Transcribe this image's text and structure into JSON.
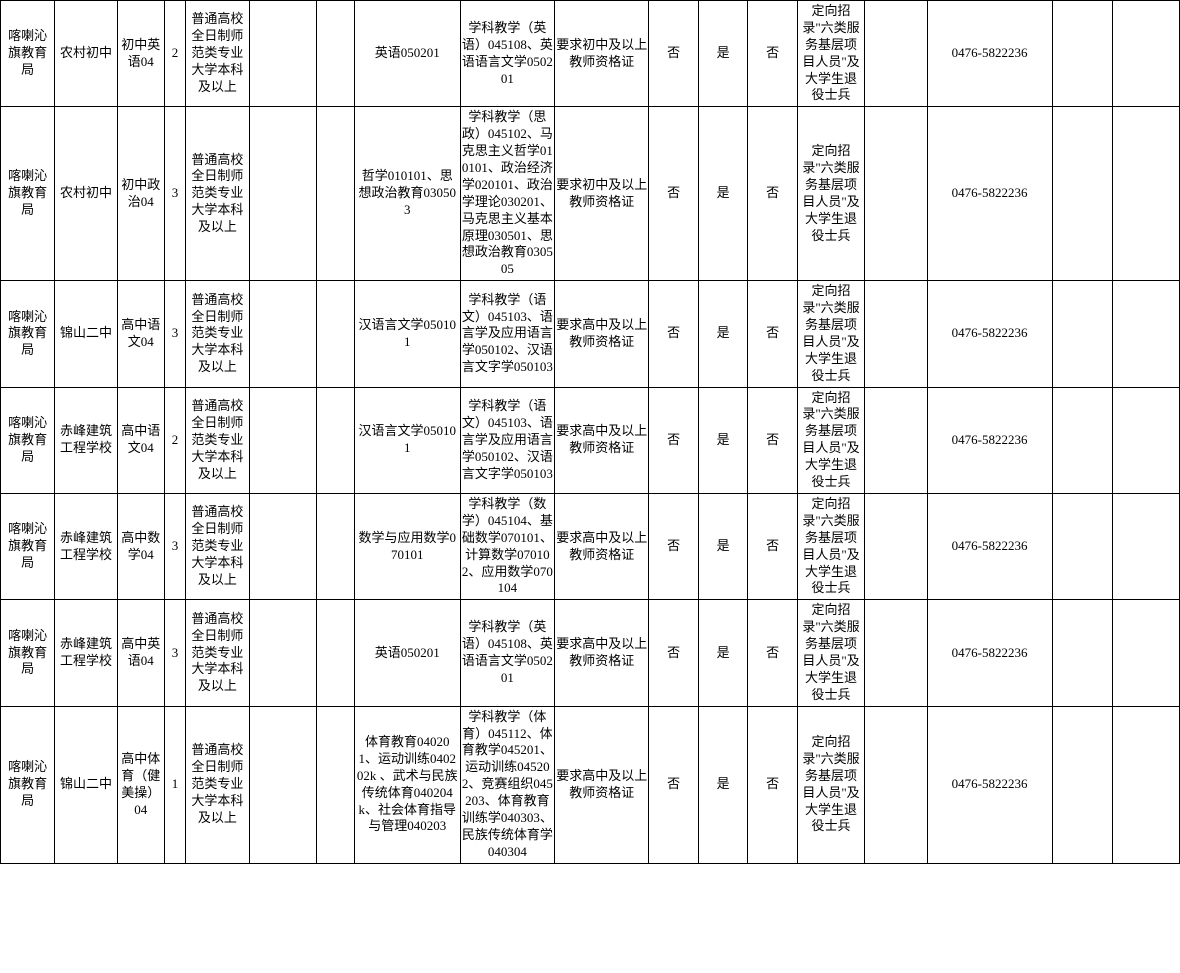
{
  "table": {
    "background_color": "#ffffff",
    "border_color": "#000000",
    "font_size": 13,
    "rows": [
      {
        "c0": "喀喇沁旗教育局",
        "c1": "农村初中",
        "c2": "初中英语04",
        "c3": "2",
        "c4": "普通高校全日制师范类专业大学本科及以上",
        "c5": "",
        "c6": "",
        "c7": "英语050201",
        "c8": "学科教学（英语）045108、英语语言文学050201",
        "c9": "要求初中及以上教师资格证",
        "c10": "否",
        "c11": "是",
        "c12": "否",
        "c13": "定向招录\"六类服务基层项目人员\"及大学生退役士兵",
        "c14": "",
        "c15": "0476-5822236",
        "c16": "",
        "c17": ""
      },
      {
        "c0": "喀喇沁旗教育局",
        "c1": "农村初中",
        "c2": "初中政治04",
        "c3": "3",
        "c4": "普通高校全日制师范类专业大学本科及以上",
        "c5": "",
        "c6": "",
        "c7": "哲学010101、思想政治教育030503",
        "c8": "学科教学（思政）045102、马克思主义哲学010101、政治经济学020101、政治学理论030201、马克思主义基本原理030501、思想政治教育030505",
        "c9": "要求初中及以上教师资格证",
        "c10": "否",
        "c11": "是",
        "c12": "否",
        "c13": "定向招录\"六类服务基层项目人员\"及大学生退役士兵",
        "c14": "",
        "c15": "0476-5822236",
        "c16": "",
        "c17": ""
      },
      {
        "c0": "喀喇沁旗教育局",
        "c1": "锦山二中",
        "c2": "高中语文04",
        "c3": "3",
        "c4": "普通高校全日制师范类专业大学本科及以上",
        "c5": "",
        "c6": "",
        "c7": "汉语言文学050101",
        "c8": "学科教学（语文）045103、语言学及应用语言学050102、汉语言文字学050103",
        "c9": "要求高中及以上教师资格证",
        "c10": "否",
        "c11": "是",
        "c12": "否",
        "c13": "定向招录\"六类服务基层项目人员\"及大学生退役士兵",
        "c14": "",
        "c15": "0476-5822236",
        "c16": "",
        "c17": ""
      },
      {
        "c0": "喀喇沁旗教育局",
        "c1": "赤峰建筑工程学校",
        "c2": "高中语文04",
        "c3": "2",
        "c4": "普通高校全日制师范类专业大学本科及以上",
        "c5": "",
        "c6": "",
        "c7": "汉语言文学050101",
        "c8": "学科教学（语文）045103、语言学及应用语言学050102、汉语言文字学050103",
        "c9": "要求高中及以上教师资格证",
        "c10": "否",
        "c11": "是",
        "c12": "否",
        "c13": "定向招录\"六类服务基层项目人员\"及大学生退役士兵",
        "c14": "",
        "c15": "0476-5822236",
        "c16": "",
        "c17": ""
      },
      {
        "c0": "喀喇沁旗教育局",
        "c1": "赤峰建筑工程学校",
        "c2": "高中数学04",
        "c3": "3",
        "c4": "普通高校全日制师范类专业大学本科及以上",
        "c5": "",
        "c6": "",
        "c7": "数学与应用数学070101",
        "c8": "学科教学（数学）045104、基础数学070101、计算数学070102、应用数学070104",
        "c9": "要求高中及以上教师资格证",
        "c10": "否",
        "c11": "是",
        "c12": "否",
        "c13": "定向招录\"六类服务基层项目人员\"及大学生退役士兵",
        "c14": "",
        "c15": "0476-5822236",
        "c16": "",
        "c17": ""
      },
      {
        "c0": "喀喇沁旗教育局",
        "c1": "赤峰建筑工程学校",
        "c2": "高中英语04",
        "c3": "3",
        "c4": "普通高校全日制师范类专业大学本科及以上",
        "c5": "",
        "c6": "",
        "c7": "英语050201",
        "c8": "学科教学（英语）045108、英语语言文学050201",
        "c9": "要求高中及以上教师资格证",
        "c10": "否",
        "c11": "是",
        "c12": "否",
        "c13": "定向招录\"六类服务基层项目人员\"及大学生退役士兵",
        "c14": "",
        "c15": "0476-5822236",
        "c16": "",
        "c17": ""
      },
      {
        "c0": "喀喇沁旗教育局",
        "c1": "锦山二中",
        "c2": "高中体育（健美操）04",
        "c3": "1",
        "c4": "普通高校全日制师范类专业大学本科及以上",
        "c5": "",
        "c6": "",
        "c7": "体育教育040201、运动训练040202k 、武术与民族传统体育040204k、社会体育指导与管理040203",
        "c8": "学科教学（体育）045112、体育教学045201、运动训练045202、竞赛组织045203、体育教育训练学040303、民族传统体育学040304",
        "c9": "要求高中及以上教师资格证",
        "c10": "否",
        "c11": "是",
        "c12": "否",
        "c13": "定向招录\"六类服务基层项目人员\"及大学生退役士兵",
        "c14": "",
        "c15": "0476-5822236",
        "c16": "",
        "c17": ""
      }
    ]
  }
}
